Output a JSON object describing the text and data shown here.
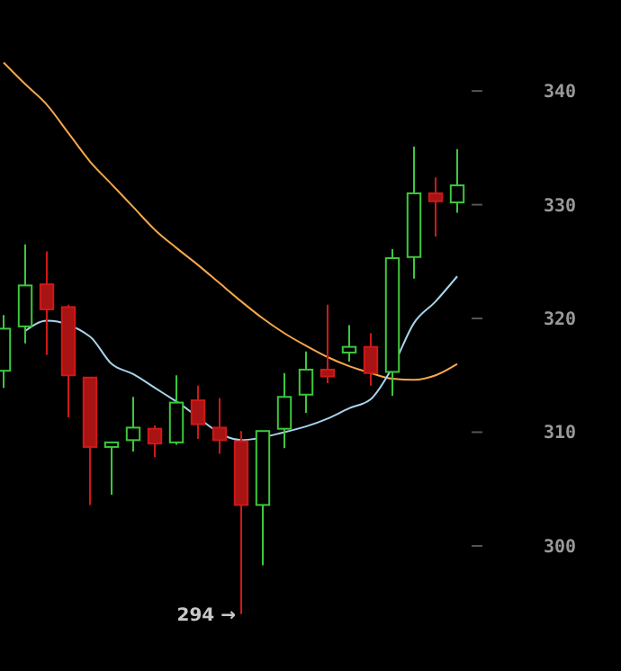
{
  "chart_data": {
    "type": "candlestick",
    "categories": [
      null,
      null,
      null,
      null,
      null,
      null,
      null,
      null,
      null,
      null,
      null,
      null,
      null,
      null,
      null,
      null,
      null,
      null,
      null,
      null,
      null,
      null
    ],
    "ohlc": [
      [
        315.4,
        320.3,
        313.9,
        319.1
      ],
      [
        319.3,
        326.5,
        317.8,
        322.9
      ],
      [
        323,
        325.9,
        316.8,
        320.8
      ],
      [
        321,
        321.2,
        311.3,
        315
      ],
      [
        314.8,
        314.8,
        303.6,
        308.7
      ],
      [
        308.7,
        309.1,
        304.5,
        309.1
      ],
      [
        309.3,
        313.1,
        308.3,
        310.4
      ],
      [
        310.3,
        310.6,
        307.8,
        309
      ],
      [
        309.1,
        315,
        308.9,
        312.6
      ],
      [
        312.8,
        314.1,
        309.4,
        310.7
      ],
      [
        310.4,
        313,
        308.1,
        309.3
      ],
      [
        309.2,
        310.1,
        294,
        303.6
      ],
      [
        303.6,
        310.1,
        298.3,
        310.1
      ],
      [
        310.3,
        315.2,
        308.6,
        313.1
      ],
      [
        313.3,
        317.1,
        311.7,
        315.5
      ],
      [
        315.5,
        321.2,
        314.3,
        314.9
      ],
      [
        317,
        319.4,
        316.2,
        317.5
      ],
      [
        317.5,
        318.7,
        314.1,
        315.2
      ],
      [
        315.3,
        326.1,
        313.2,
        325.3
      ],
      [
        325.4,
        335.1,
        323.5,
        331
      ],
      [
        331,
        332.4,
        327.2,
        330.3
      ],
      [
        330.2,
        334.9,
        329.3,
        331.7
      ]
    ],
    "colors": [
      "#3cc83c",
      "#3cc83c",
      "#d01818",
      "#d01818",
      "#d01818",
      "#3cc83c",
      "#3cc83c",
      "#d01818",
      "#3cc83c",
      "#d01818",
      "#d01818",
      "#d01818",
      "#3cc83c",
      "#3cc83c",
      "#3cc83c",
      "#d01818",
      "#3cc83c",
      "#d01818",
      "#3cc83c",
      "#3cc83c",
      "#d01818",
      "#3cc83c"
    ],
    "series": [
      {
        "type": "line",
        "color": "#f5a64c",
        "values": [
          342.5,
          340.6,
          338.8,
          336.3,
          333.8,
          331.8,
          329.8,
          327.8,
          326.2,
          324.7,
          323.1,
          321.5,
          320,
          318.7,
          317.6,
          316.6,
          315.8,
          315.2,
          314.7,
          314.6,
          315,
          316
        ]
      },
      {
        "type": "line",
        "color": "#a8d4ec",
        "values": [
          null,
          318.9,
          319.8,
          null,
          318.4,
          316,
          315.1,
          313.9,
          312.7,
          null,
          null,
          309.3,
          null,
          310,
          310.5,
          311.2,
          312.1,
          312.9,
          315.7,
          319.6,
          321.5,
          323.7
        ]
      }
    ],
    "ylim": [
      289,
      348
    ],
    "yticks": [
      300,
      310,
      320,
      330,
      340
    ],
    "tick_labels": "y",
    "grid": false,
    "annotations": [
      "294 →"
    ]
  }
}
